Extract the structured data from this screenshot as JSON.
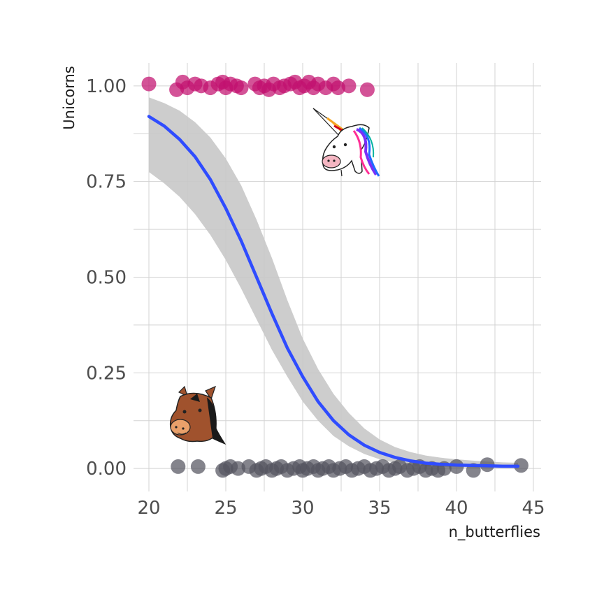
{
  "chart_data": {
    "type": "scatter",
    "title": "",
    "xlabel": "n_butterflies",
    "ylabel": "Unicorns",
    "xlim": [
      19,
      45.5
    ],
    "ylim": [
      -0.06,
      1.06
    ],
    "x_ticks": [
      20,
      25,
      30,
      35,
      40,
      45
    ],
    "x_tick_labels": [
      "20",
      "25",
      "30",
      "35",
      "40",
      "45"
    ],
    "y_ticks": [
      0,
      0.25,
      0.5,
      0.75,
      1
    ],
    "y_tick_labels": [
      "0.00",
      "0.25",
      "0.50",
      "0.75",
      "1.00"
    ],
    "grid": true,
    "legend": "none",
    "colors": {
      "unicorn_points": "#c2116f",
      "horse_points": "#55555f",
      "fit_line": "#2f4cff",
      "ribbon": "#c8c8c8",
      "grid": "#d3d3d3"
    },
    "series": [
      {
        "type": "scatter",
        "points": [
          [
            20.0,
            1.005
          ],
          [
            21.8,
            0.99
          ],
          [
            22.2,
            1.01
          ],
          [
            22.5,
            0.995
          ],
          [
            23.0,
            1.005
          ],
          [
            23.4,
            1.0
          ],
          [
            24.0,
            0.995
          ],
          [
            24.5,
            1.005
          ],
          [
            24.8,
            1.01
          ],
          [
            25.0,
            0.995
          ],
          [
            25.3,
            1.005
          ],
          [
            25.7,
            1.0
          ],
          [
            26.0,
            0.995
          ],
          [
            26.9,
            1.005
          ],
          [
            27.2,
            0.995
          ],
          [
            27.5,
            1.0
          ],
          [
            27.8,
            0.99
          ],
          [
            28.1,
            1.005
          ],
          [
            28.5,
            0.995
          ],
          [
            28.8,
            1.0
          ],
          [
            29.2,
            1.005
          ],
          [
            29.5,
            1.01
          ],
          [
            29.8,
            0.995
          ],
          [
            30.1,
            1.0
          ],
          [
            30.4,
            1.01
          ],
          [
            30.7,
            0.995
          ],
          [
            31.0,
            1.005
          ],
          [
            31.5,
            0.995
          ],
          [
            32.0,
            1.005
          ],
          [
            32.3,
            0.995
          ],
          [
            33.0,
            1.0
          ],
          [
            34.2,
            0.99
          ]
        ]
      },
      {
        "type": "scatter",
        "points": [
          [
            21.9,
            0.005
          ],
          [
            23.2,
            0.005
          ],
          [
            24.8,
            -0.005
          ],
          [
            25.0,
            0.0
          ],
          [
            25.3,
            0.005
          ],
          [
            25.8,
            0.0
          ],
          [
            26.5,
            0.005
          ],
          [
            27.0,
            -0.005
          ],
          [
            27.3,
            0.0
          ],
          [
            27.6,
            0.005
          ],
          [
            28.0,
            -0.005
          ],
          [
            28.3,
            0.0
          ],
          [
            28.6,
            0.005
          ],
          [
            29.0,
            -0.005
          ],
          [
            29.4,
            0.0
          ],
          [
            29.8,
            0.005
          ],
          [
            30.0,
            -0.005
          ],
          [
            30.3,
            0.0
          ],
          [
            30.7,
            0.005
          ],
          [
            31.0,
            -0.005
          ],
          [
            31.3,
            0.0
          ],
          [
            31.7,
            0.005
          ],
          [
            32.0,
            -0.005
          ],
          [
            32.4,
            0.0
          ],
          [
            32.8,
            0.005
          ],
          [
            33.2,
            -0.005
          ],
          [
            33.6,
            0.0
          ],
          [
            34.0,
            0.005
          ],
          [
            34.4,
            -0.005
          ],
          [
            34.8,
            0.0
          ],
          [
            35.2,
            0.005
          ],
          [
            35.6,
            -0.005
          ],
          [
            36.0,
            0.0
          ],
          [
            36.3,
            0.005
          ],
          [
            36.8,
            -0.005
          ],
          [
            37.2,
            0.0
          ],
          [
            37.6,
            0.005
          ],
          [
            38.0,
            -0.005
          ],
          [
            38.4,
            0.0
          ],
          [
            38.8,
            -0.005
          ],
          [
            39.2,
            0.0
          ],
          [
            40.0,
            0.005
          ],
          [
            41.1,
            -0.005
          ],
          [
            42.0,
            0.01
          ],
          [
            44.2,
            0.008
          ]
        ]
      },
      {
        "type": "line",
        "x": [
          20,
          21,
          22,
          23,
          24,
          25,
          26,
          27,
          28,
          29,
          30,
          31,
          32,
          33,
          34,
          35,
          36,
          37,
          38,
          39,
          40,
          41,
          42,
          43,
          44
        ],
        "y": [
          0.92,
          0.895,
          0.86,
          0.815,
          0.755,
          0.68,
          0.595,
          0.5,
          0.405,
          0.315,
          0.24,
          0.175,
          0.125,
          0.088,
          0.061,
          0.042,
          0.029,
          0.02,
          0.014,
          0.011,
          0.009,
          0.008,
          0.007,
          0.006,
          0.006
        ],
        "lower": [
          0.775,
          0.745,
          0.71,
          0.665,
          0.61,
          0.545,
          0.47,
          0.39,
          0.31,
          0.24,
          0.175,
          0.125,
          0.085,
          0.058,
          0.038,
          0.024,
          0.015,
          0.009,
          0.006,
          0.004,
          0.003,
          0.002,
          0.001,
          0.001,
          0.0
        ],
        "upper": [
          0.97,
          0.955,
          0.935,
          0.905,
          0.865,
          0.81,
          0.74,
          0.65,
          0.55,
          0.44,
          0.34,
          0.26,
          0.195,
          0.145,
          0.105,
          0.076,
          0.056,
          0.043,
          0.034,
          0.028,
          0.024,
          0.021,
          0.018,
          0.016,
          0.015
        ]
      }
    ]
  },
  "icons": {
    "unicorn": "unicorn-icon",
    "horse": "horse-icon"
  }
}
